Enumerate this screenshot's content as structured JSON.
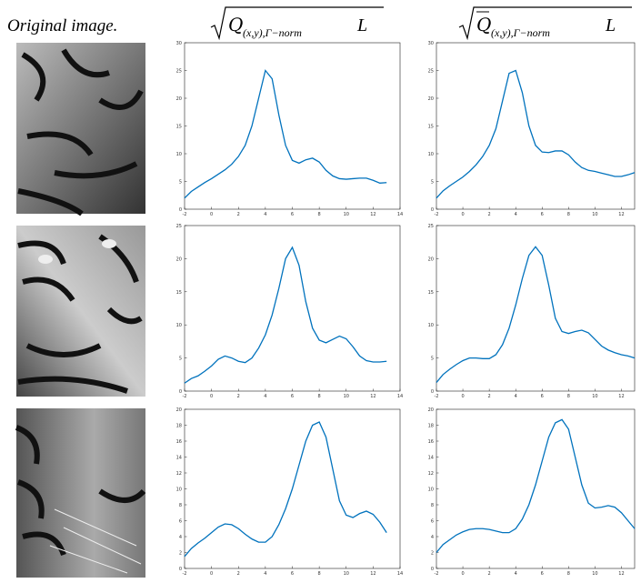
{
  "header": {
    "image_label": "Original image.",
    "columns": [
      {
        "symbol": "Q",
        "subscript": "(x,y),Γ−norm",
        "suffix": "L"
      },
      {
        "symbol": "Q",
        "subscript": "(x,y),Γ−norm",
        "suffix": "L"
      }
    ]
  },
  "chart_data": [
    {
      "type": "line",
      "color": "#0072bd",
      "xlim": [
        -2,
        14
      ],
      "ylim": [
        0,
        30
      ],
      "xticks": [
        -2,
        0,
        2,
        4,
        6,
        8,
        10,
        12,
        14
      ],
      "yticks": [
        0,
        5,
        10,
        15,
        20,
        25,
        30
      ],
      "x": [
        -2,
        -1.5,
        -1,
        -0.5,
        0,
        0.5,
        1,
        1.5,
        2,
        2.5,
        3,
        3.5,
        4,
        4.5,
        5,
        5.5,
        6,
        6.5,
        7,
        7.5,
        8,
        8.5,
        9,
        9.5,
        10,
        10.5,
        11,
        11.5,
        12,
        12.5,
        13
      ],
      "values": [
        2,
        3.2,
        4,
        4.8,
        5.5,
        6.3,
        7.1,
        8.1,
        9.5,
        11.5,
        15,
        20,
        25,
        23.5,
        17,
        11.5,
        8.8,
        8.3,
        8.9,
        9.2,
        8.5,
        7,
        6,
        5.5,
        5.4,
        5.5,
        5.6,
        5.6,
        5.2,
        4.7,
        4.8
      ]
    },
    {
      "type": "line",
      "color": "#0072bd",
      "xlim": [
        -2,
        13
      ],
      "ylim": [
        0,
        30
      ],
      "xticks": [
        -2,
        0,
        2,
        4,
        6,
        8,
        10,
        12
      ],
      "yticks": [
        0,
        5,
        10,
        15,
        20,
        25,
        30
      ],
      "x": [
        -2,
        -1.5,
        -1,
        -0.5,
        0,
        0.5,
        1,
        1.5,
        2,
        2.5,
        3,
        3.5,
        4,
        4.5,
        5,
        5.5,
        6,
        6.5,
        7,
        7.5,
        8,
        8.5,
        9,
        9.5,
        10,
        10.5,
        11,
        11.5,
        12,
        12.5,
        13
      ],
      "values": [
        2,
        3.3,
        4.2,
        5,
        5.8,
        6.8,
        8,
        9.5,
        11.5,
        14.5,
        19.5,
        24.5,
        25,
        21,
        15,
        11.5,
        10.3,
        10.2,
        10.5,
        10.5,
        9.8,
        8.5,
        7.5,
        7,
        6.8,
        6.5,
        6.2,
        5.9,
        5.9,
        6.2,
        6.6
      ]
    },
    {
      "type": "line",
      "color": "#0072bd",
      "xlim": [
        -2,
        14
      ],
      "ylim": [
        0,
        25
      ],
      "xticks": [
        -2,
        0,
        2,
        4,
        6,
        8,
        10,
        12,
        14
      ],
      "yticks": [
        0,
        5,
        10,
        15,
        20,
        25
      ],
      "x": [
        -2,
        -1.5,
        -1,
        -0.5,
        0,
        0.5,
        1,
        1.5,
        2,
        2.5,
        3,
        3.5,
        4,
        4.5,
        5,
        5.5,
        6,
        6.5,
        7,
        7.5,
        8,
        8.5,
        9,
        9.5,
        10,
        10.5,
        11,
        11.5,
        12,
        12.5,
        13
      ],
      "values": [
        1.2,
        1.9,
        2.3,
        3,
        3.8,
        4.8,
        5.3,
        5,
        4.5,
        4.3,
        5,
        6.5,
        8.5,
        11.5,
        15.5,
        20,
        21.7,
        19,
        13.5,
        9.5,
        7.7,
        7.3,
        7.8,
        8.3,
        7.9,
        6.7,
        5.3,
        4.6,
        4.4,
        4.4,
        4.5
      ]
    },
    {
      "type": "line",
      "color": "#0072bd",
      "xlim": [
        -2,
        13
      ],
      "ylim": [
        0,
        25
      ],
      "xticks": [
        -2,
        0,
        2,
        4,
        6,
        8,
        10,
        12
      ],
      "yticks": [
        0,
        5,
        10,
        15,
        20,
        25
      ],
      "x": [
        -2,
        -1.5,
        -1,
        -0.5,
        0,
        0.5,
        1,
        1.5,
        2,
        2.5,
        3,
        3.5,
        4,
        4.5,
        5,
        5.5,
        6,
        6.5,
        7,
        7.5,
        8,
        8.5,
        9,
        9.5,
        10,
        10.5,
        11,
        11.5,
        12,
        12.5,
        13
      ],
      "values": [
        1.3,
        2.5,
        3.3,
        4,
        4.6,
        5,
        5,
        4.9,
        4.9,
        5.5,
        7,
        9.5,
        13,
        17,
        20.5,
        21.8,
        20.5,
        16,
        11,
        9,
        8.7,
        9,
        9.2,
        8.8,
        7.8,
        6.8,
        6.2,
        5.8,
        5.5,
        5.3,
        5
      ]
    },
    {
      "type": "line",
      "color": "#0072bd",
      "xlim": [
        -2,
        14
      ],
      "ylim": [
        0,
        20
      ],
      "xticks": [
        -2,
        0,
        2,
        4,
        6,
        8,
        10,
        12,
        14
      ],
      "yticks": [
        0,
        2,
        4,
        6,
        8,
        10,
        12,
        14,
        16,
        18,
        20
      ],
      "x": [
        -2,
        -1.5,
        -1,
        -0.5,
        0,
        0.5,
        1,
        1.5,
        2,
        2.5,
        3,
        3.5,
        4,
        4.5,
        5,
        5.5,
        6,
        6.5,
        7,
        7.5,
        8,
        8.5,
        9,
        9.5,
        10,
        10.5,
        11,
        11.5,
        12,
        12.5,
        13
      ],
      "values": [
        1.5,
        2.5,
        3.2,
        3.8,
        4.5,
        5.2,
        5.6,
        5.5,
        5,
        4.3,
        3.7,
        3.3,
        3.3,
        4,
        5.5,
        7.5,
        10,
        13,
        16,
        18,
        18.4,
        16.5,
        12.5,
        8.5,
        6.7,
        6.4,
        6.9,
        7.2,
        6.8,
        5.8,
        4.5
      ]
    },
    {
      "type": "line",
      "color": "#0072bd",
      "xlim": [
        -2,
        13
      ],
      "ylim": [
        0,
        20
      ],
      "xticks": [
        -2,
        0,
        2,
        4,
        6,
        8,
        10,
        12
      ],
      "yticks": [
        0,
        2,
        4,
        6,
        8,
        10,
        12,
        14,
        16,
        18,
        20
      ],
      "x": [
        -2,
        -1.5,
        -1,
        -0.5,
        0,
        0.5,
        1,
        1.5,
        2,
        2.5,
        3,
        3.5,
        4,
        4.5,
        5,
        5.5,
        6,
        6.5,
        7,
        7.5,
        8,
        8.5,
        9,
        9.5,
        10,
        10.5,
        11,
        11.5,
        12,
        12.5,
        13
      ],
      "values": [
        2,
        3,
        3.6,
        4.2,
        4.6,
        4.9,
        5,
        5,
        4.9,
        4.7,
        4.5,
        4.5,
        5,
        6.2,
        8,
        10.5,
        13.5,
        16.5,
        18.3,
        18.7,
        17.5,
        14,
        10.5,
        8.2,
        7.6,
        7.7,
        7.9,
        7.7,
        7,
        6,
        5
      ]
    }
  ]
}
